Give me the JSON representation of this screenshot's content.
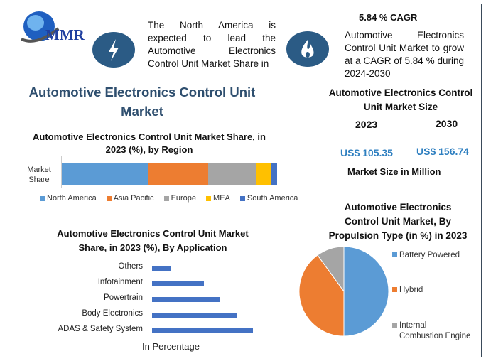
{
  "brand": {
    "logo_text": "MMR"
  },
  "header": {
    "lead_text": [
      "The North America is",
      "expected to lead the",
      "Automotive Electronics",
      "Control Unit Market Share in"
    ],
    "cagr_title": "5.84 % CAGR",
    "cagr_text": [
      "Automotive Electronics",
      "Control Unit Market to grow",
      "at a CAGR of 5.84 % during",
      "2024-2030"
    ],
    "icons": [
      "lightning-icon",
      "flame-icon"
    ]
  },
  "main_title": [
    "Automotive Electronics Control Unit",
    "Market"
  ],
  "market_size": {
    "title": [
      "Automotive Electronics Control",
      "Unit Market Size"
    ],
    "year_a": "2023",
    "year_b": "2030",
    "value_a": "US$ 105.35",
    "value_b": "US$ 156.74",
    "unit_note": "Market Size in Million"
  },
  "colors": {
    "accent": "#2b5b85",
    "title": "#2f4f6f",
    "value": "#2e7fc0"
  },
  "chart_data": [
    {
      "type": "bar",
      "orientation": "horizontal",
      "stacked": true,
      "title": [
        "Automotive Electronics Control Unit Market Share, in",
        "2023 (%), by Region"
      ],
      "categories": [
        "Market Share"
      ],
      "category_label": [
        "Market",
        "Share"
      ],
      "series": [
        {
          "name": "North America",
          "values": [
            40
          ],
          "color": "#5b9bd5"
        },
        {
          "name": "Asia Pacific",
          "values": [
            28
          ],
          "color": "#ed7d31"
        },
        {
          "name": "Europe",
          "values": [
            22
          ],
          "color": "#a5a5a5"
        },
        {
          "name": "MEA",
          "values": [
            7
          ],
          "color": "#ffc000"
        },
        {
          "name": "South America",
          "values": [
            3
          ],
          "color": "#4472c4"
        }
      ],
      "legend": "bottom",
      "xlim": [
        0,
        100
      ]
    },
    {
      "type": "bar",
      "orientation": "horizontal",
      "title": [
        "Automotive Electronics Control Unit Market",
        "Share, in 2023 (%), By Application"
      ],
      "categories": [
        "Others",
        "Infotainment",
        "Powertrain",
        "Body Electronics",
        "ADAS & Safety System"
      ],
      "values": [
        6,
        16,
        21,
        26,
        31
      ],
      "xlabel": "In Percentage",
      "color": "#4472c4",
      "xlim": [
        0,
        35
      ]
    },
    {
      "type": "pie",
      "title": [
        "Automotive Electronics",
        "Control Unit Market, By",
        "Propulsion Type (in %) in 2023"
      ],
      "labels": [
        "Battery Powered",
        "Hybrid",
        "Internal Combustion Engine"
      ],
      "legend_lines": [
        [
          "Battery Powered"
        ],
        [
          "Hybrid"
        ],
        [
          "Internal",
          "Combustion Engine"
        ]
      ],
      "values": [
        50,
        40,
        10
      ],
      "colors": [
        "#5b9bd5",
        "#ed7d31",
        "#a5a5a5"
      ],
      "legend": "right"
    }
  ]
}
